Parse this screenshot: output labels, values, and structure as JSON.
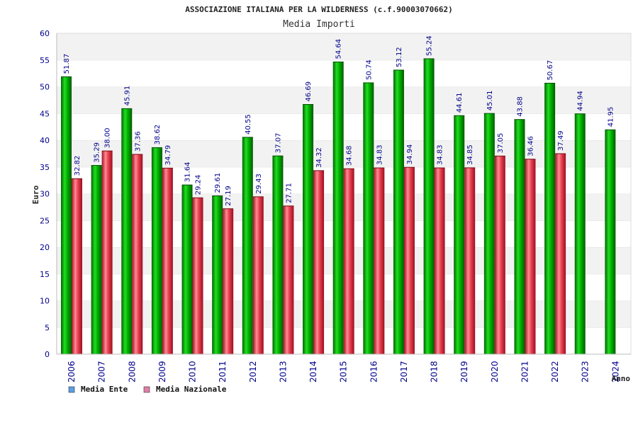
{
  "chart_data": {
    "type": "bar",
    "title": "ASSOCIAZIONE ITALIANA PER LA WILDERNESS (c.f.90003070662)",
    "subtitle": "Media Importi",
    "ylabel": "Euro",
    "xlabel": "Anno",
    "ylim": [
      0,
      60
    ],
    "yticks": [
      0,
      5,
      10,
      15,
      20,
      25,
      30,
      35,
      40,
      45,
      50,
      55,
      60
    ],
    "grid": "horizontal bands",
    "legend_position": "bottom-left",
    "categories": [
      "2006",
      "2007",
      "2008",
      "2009",
      "2010",
      "2011",
      "2012",
      "2013",
      "2014",
      "2015",
      "2016",
      "2017",
      "2018",
      "2019",
      "2020",
      "2021",
      "2022",
      "2023",
      "2024"
    ],
    "series": [
      {
        "name": "Media Ente",
        "color": "#00aa00",
        "legend_color": "#5aa0e6",
        "values": [
          51.87,
          35.29,
          45.91,
          38.62,
          31.64,
          29.61,
          40.55,
          37.07,
          46.69,
          54.64,
          50.74,
          53.12,
          55.24,
          44.61,
          45.01,
          43.88,
          50.67,
          44.94,
          41.95
        ],
        "labels": [
          "51.87",
          "35.29",
          "45.91",
          "38.62",
          "31.64",
          "29.61",
          "40.55",
          "37.07",
          "46.69",
          "54.64",
          "50.74",
          "53.12",
          "55.24",
          "44.61",
          "45.01",
          "43.88",
          "50.67",
          "44.94",
          "41.95"
        ]
      },
      {
        "name": "Media Nazionale",
        "color": "#e03040",
        "legend_color": "#e080a8",
        "values": [
          32.82,
          38.0,
          37.36,
          34.79,
          29.24,
          27.19,
          29.43,
          27.71,
          34.32,
          34.68,
          34.83,
          34.94,
          34.83,
          34.85,
          37.05,
          36.46,
          37.49,
          null,
          null
        ],
        "labels": [
          "32.82",
          "38.00",
          "37.36",
          "34.79",
          "29.24",
          "27.19",
          "29.43",
          "27.71",
          "34.32",
          "34.68",
          "34.83",
          "34.94",
          "34.83",
          "34.85",
          "37.05",
          "36.46",
          "37.49",
          "",
          ""
        ]
      }
    ]
  }
}
